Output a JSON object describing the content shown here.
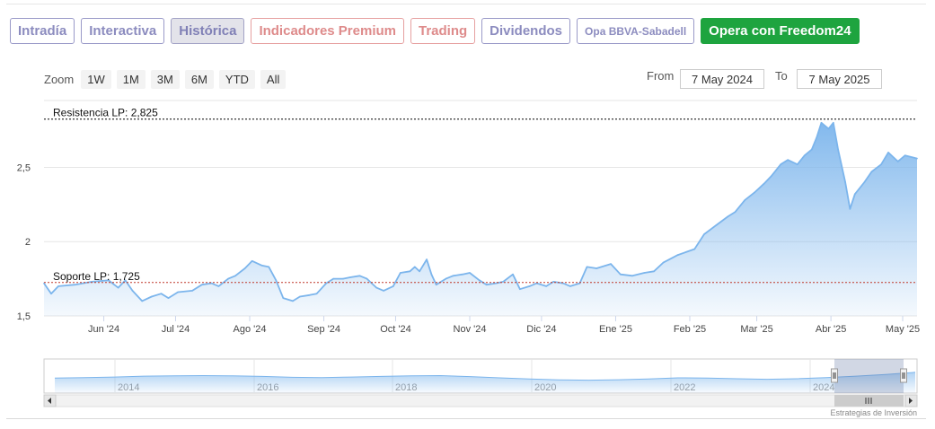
{
  "tabs": [
    {
      "label": "Intradía",
      "style": "normal"
    },
    {
      "label": "Interactiva",
      "style": "normal"
    },
    {
      "label": "Histórica",
      "style": "active"
    },
    {
      "label": "Indicadores Premium",
      "style": "premium"
    },
    {
      "label": "Trading",
      "style": "premium"
    },
    {
      "label": "Dividendos",
      "style": "normal"
    },
    {
      "label": "Opa BBVA-Sabadell",
      "style": "small"
    },
    {
      "label": "Opera con Freedom24",
      "style": "cta"
    }
  ],
  "zoom": {
    "label": "Zoom",
    "buttons": [
      "1W",
      "1M",
      "3M",
      "6M",
      "YTD",
      "All"
    ]
  },
  "range": {
    "from_label": "From",
    "from_value": "7 May 2024",
    "to_label": "To",
    "to_value": "7 May 2025"
  },
  "colors": {
    "tab_text": "#8c8cbf",
    "premium": "#de8b8b",
    "cta": "#1ea43f",
    "line": "#7cb5ec",
    "resistance": "#000000",
    "support": "#c0392b"
  },
  "chart_data": {
    "type": "area",
    "ylim": [
      1.5,
      2.95
    ],
    "yticks": [
      1.5,
      2,
      2.5
    ],
    "ytick_labels": [
      "1,5",
      "2",
      "2,5"
    ],
    "x_tick_labels": [
      "Jun '24",
      "Jul '24",
      "Ago '24",
      "Sep '24",
      "Oct '24",
      "Nov '24",
      "Dic '24",
      "Ene '25",
      "Feb '25",
      "Mar '25",
      "Abr '25",
      "May '25"
    ],
    "x_start": "2024-05-07",
    "x_end": "2025-05-07",
    "x_tick_dates": [
      "2024-06-01",
      "2024-07-01",
      "2024-08-01",
      "2024-09-01",
      "2024-10-01",
      "2024-11-01",
      "2024-12-01",
      "2025-01-01",
      "2025-02-01",
      "2025-03-01",
      "2025-04-01",
      "2025-05-01"
    ],
    "series": [
      {
        "values": [
          [
            "2024-05-07",
            1.72
          ],
          [
            "2024-05-10",
            1.65
          ],
          [
            "2024-05-13",
            1.7
          ],
          [
            "2024-05-20",
            1.71
          ],
          [
            "2024-05-27",
            1.73
          ],
          [
            "2024-06-03",
            1.74
          ],
          [
            "2024-06-07",
            1.69
          ],
          [
            "2024-06-10",
            1.74
          ],
          [
            "2024-06-13",
            1.67
          ],
          [
            "2024-06-17",
            1.6
          ],
          [
            "2024-06-21",
            1.63
          ],
          [
            "2024-06-25",
            1.65
          ],
          [
            "2024-06-28",
            1.62
          ],
          [
            "2024-07-02",
            1.66
          ],
          [
            "2024-07-08",
            1.67
          ],
          [
            "2024-07-12",
            1.71
          ],
          [
            "2024-07-16",
            1.72
          ],
          [
            "2024-07-19",
            1.7
          ],
          [
            "2024-07-23",
            1.75
          ],
          [
            "2024-07-26",
            1.77
          ],
          [
            "2024-07-30",
            1.82
          ],
          [
            "2024-08-02",
            1.87
          ],
          [
            "2024-08-06",
            1.84
          ],
          [
            "2024-08-09",
            1.83
          ],
          [
            "2024-08-12",
            1.74
          ],
          [
            "2024-08-15",
            1.62
          ],
          [
            "2024-08-19",
            1.6
          ],
          [
            "2024-08-22",
            1.63
          ],
          [
            "2024-08-26",
            1.64
          ],
          [
            "2024-08-29",
            1.65
          ],
          [
            "2024-09-02",
            1.72
          ],
          [
            "2024-09-05",
            1.75
          ],
          [
            "2024-09-09",
            1.75
          ],
          [
            "2024-09-12",
            1.76
          ],
          [
            "2024-09-16",
            1.77
          ],
          [
            "2024-09-19",
            1.75
          ],
          [
            "2024-09-23",
            1.69
          ],
          [
            "2024-09-26",
            1.67
          ],
          [
            "2024-09-30",
            1.7
          ],
          [
            "2024-10-03",
            1.79
          ],
          [
            "2024-10-07",
            1.8
          ],
          [
            "2024-10-09",
            1.83
          ],
          [
            "2024-10-11",
            1.8
          ],
          [
            "2024-10-14",
            1.88
          ],
          [
            "2024-10-16",
            1.78
          ],
          [
            "2024-10-18",
            1.71
          ],
          [
            "2024-10-22",
            1.75
          ],
          [
            "2024-10-25",
            1.77
          ],
          [
            "2024-10-29",
            1.78
          ],
          [
            "2024-11-01",
            1.79
          ],
          [
            "2024-11-05",
            1.74
          ],
          [
            "2024-11-08",
            1.71
          ],
          [
            "2024-11-12",
            1.72
          ],
          [
            "2024-11-15",
            1.73
          ],
          [
            "2024-11-19",
            1.78
          ],
          [
            "2024-11-22",
            1.68
          ],
          [
            "2024-11-26",
            1.7
          ],
          [
            "2024-11-29",
            1.72
          ],
          [
            "2024-12-03",
            1.7
          ],
          [
            "2024-12-06",
            1.73
          ],
          [
            "2024-12-10",
            1.72
          ],
          [
            "2024-12-13",
            1.7
          ],
          [
            "2024-12-17",
            1.72
          ],
          [
            "2024-12-20",
            1.83
          ],
          [
            "2024-12-24",
            1.82
          ],
          [
            "2024-12-30",
            1.85
          ],
          [
            "2025-01-03",
            1.78
          ],
          [
            "2025-01-08",
            1.77
          ],
          [
            "2025-01-13",
            1.79
          ],
          [
            "2025-01-17",
            1.8
          ],
          [
            "2025-01-21",
            1.86
          ],
          [
            "2025-01-27",
            1.91
          ],
          [
            "2025-02-03",
            1.95
          ],
          [
            "2025-02-07",
            2.05
          ],
          [
            "2025-02-12",
            2.11
          ],
          [
            "2025-02-17",
            2.17
          ],
          [
            "2025-02-20",
            2.2
          ],
          [
            "2025-02-24",
            2.28
          ],
          [
            "2025-02-28",
            2.33
          ],
          [
            "2025-03-04",
            2.39
          ],
          [
            "2025-03-07",
            2.44
          ],
          [
            "2025-03-11",
            2.52
          ],
          [
            "2025-03-14",
            2.55
          ],
          [
            "2025-03-18",
            2.52
          ],
          [
            "2025-03-21",
            2.58
          ],
          [
            "2025-03-24",
            2.62
          ],
          [
            "2025-03-26",
            2.7
          ],
          [
            "2025-03-28",
            2.8
          ],
          [
            "2025-03-31",
            2.76
          ],
          [
            "2025-04-02",
            2.8
          ],
          [
            "2025-04-04",
            2.62
          ],
          [
            "2025-04-07",
            2.4
          ],
          [
            "2025-04-09",
            2.22
          ],
          [
            "2025-04-11",
            2.32
          ],
          [
            "2025-04-15",
            2.4
          ],
          [
            "2025-04-18",
            2.47
          ],
          [
            "2025-04-22",
            2.52
          ],
          [
            "2025-04-25",
            2.6
          ],
          [
            "2025-04-29",
            2.54
          ],
          [
            "2025-05-02",
            2.58
          ],
          [
            "2025-05-07",
            2.56
          ]
        ]
      }
    ],
    "annotations": [
      {
        "label": "Resistencia LP: 2,825",
        "value": 2.825,
        "style": "dashed",
        "color": "#000000"
      },
      {
        "label": "Soporte LP: 1,725",
        "value": 1.725,
        "style": "dashed",
        "color": "#c0392b"
      }
    ],
    "navigator": {
      "year_labels": [
        "2014",
        "2016",
        "2018",
        "2020",
        "2022",
        "2024"
      ],
      "profile": [
        0.55,
        0.58,
        0.62,
        0.68,
        0.7,
        0.72,
        0.7,
        0.66,
        0.6,
        0.58,
        0.62,
        0.66,
        0.7,
        0.72,
        0.65,
        0.56,
        0.48,
        0.42,
        0.4,
        0.43,
        0.48,
        0.56,
        0.55,
        0.5,
        0.46,
        0.5,
        0.58,
        0.68,
        0.8,
        0.95
      ],
      "selected_range": "last year"
    }
  },
  "watermark": "Estrategias de Inversión"
}
